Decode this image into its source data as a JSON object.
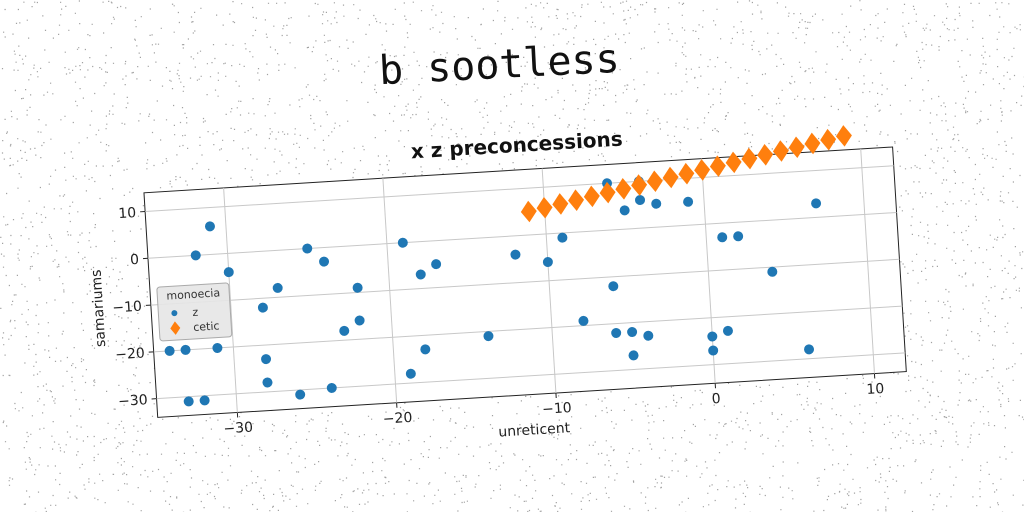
{
  "figure": {
    "supertitle": "b sootless"
  },
  "colors": {
    "z": "#1f77b4",
    "cetic": "#ff7f0e",
    "grid": "#c8c8c8",
    "axes": "#222222"
  },
  "chart_data": {
    "type": "scatter",
    "title": "x z preconcessions",
    "xlabel": "unreticent",
    "ylabel": "samariums",
    "xlim": [
      -35,
      12
    ],
    "ylim": [
      -34,
      14
    ],
    "xticks": [
      -30,
      -20,
      -10,
      0,
      10
    ],
    "yticks": [
      -30,
      -20,
      -10,
      0,
      10
    ],
    "xtick_labels": [
      "−30",
      "−20",
      "−10",
      "0",
      "10"
    ],
    "ytick_labels": [
      "−30",
      "−20",
      "−10",
      "0",
      "10"
    ],
    "grid": true,
    "legend": {
      "title": "monoecia",
      "placement": "center-left"
    },
    "series": [
      {
        "name": "z",
        "marker": "circle",
        "x": [
          -34,
          -33,
          -33,
          -32,
          -32,
          -31,
          -31,
          -30,
          -28,
          -28,
          -28,
          -27,
          -26,
          -25,
          -24,
          -24,
          -23,
          -22,
          -22,
          -19,
          -19,
          -18,
          -18,
          -17,
          -14,
          -12,
          -10,
          -9,
          -8,
          -6,
          -6,
          -6,
          -5,
          -5,
          -5,
          -4,
          -4,
          -4,
          -3,
          -1,
          0,
          0,
          1,
          1,
          2,
          4,
          6,
          7
        ],
        "y": [
          -20,
          -31,
          -20,
          -31,
          0,
          6,
          -20,
          -4,
          -12,
          -23,
          -28,
          -8,
          -31,
          0,
          -30,
          -3,
          -18,
          -16,
          -9,
          -28,
          0,
          -7,
          -23,
          -5,
          -21,
          -4,
          -6,
          -1,
          -19,
          -12,
          -22,
          10,
          -22,
          -27,
          4,
          6,
          10,
          -23,
          5,
          5,
          -27,
          -24,
          -3,
          -23,
          -3,
          -11,
          -28,
          3
        ]
      },
      {
        "name": "cetic",
        "marker": "diamond",
        "x": [
          -11,
          -10,
          -9,
          -8,
          -7,
          -6,
          -5,
          -4,
          -3,
          -2,
          -1,
          0,
          1,
          2,
          3,
          4,
          5,
          6,
          7,
          8,
          9
        ],
        "y": [
          5.0,
          5.6,
          6.2,
          6.8,
          7.4,
          8.0,
          8.6,
          9.2,
          9.8,
          10.4,
          11.0,
          11.6,
          12.2,
          12.8,
          13.4,
          14.0,
          14.6,
          15.2,
          15.8,
          16.4,
          17.0
        ]
      }
    ]
  }
}
